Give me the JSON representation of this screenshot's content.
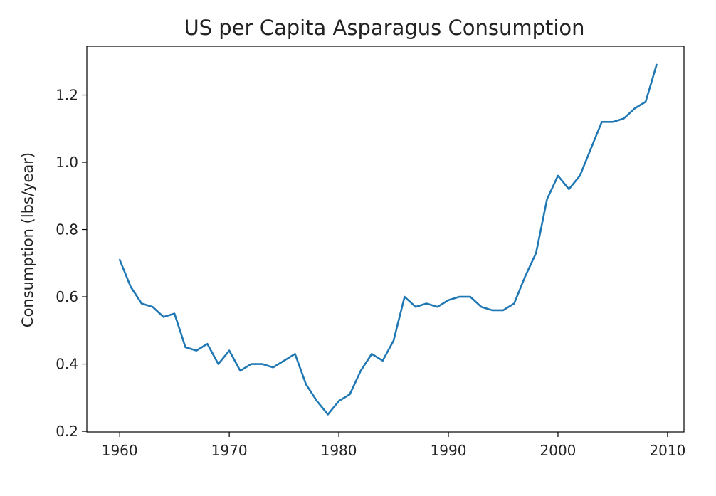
{
  "chart_data": {
    "type": "line",
    "title": "US per Capita Asparagus Consumption",
    "xlabel": "",
    "ylabel": "Consumption (lbs/year)",
    "xlim": [
      1957,
      2011.5
    ],
    "ylim": [
      0.198,
      1.345
    ],
    "xticks": [
      1960,
      1970,
      1980,
      1990,
      2000,
      2010
    ],
    "xtick_labels": [
      "1960",
      "1970",
      "1980",
      "1990",
      "2000",
      "2010"
    ],
    "yticks": [
      0.2,
      0.4,
      0.6,
      0.8,
      1.0,
      1.2
    ],
    "ytick_labels": [
      "0.2",
      "0.4",
      "0.6",
      "0.8",
      "1.0",
      "1.2"
    ],
    "grid": false,
    "legend": "none",
    "series": [
      {
        "color": "#1f77b4",
        "x": [
          1960,
          1961,
          1962,
          1963,
          1964,
          1965,
          1966,
          1967,
          1968,
          1969,
          1970,
          1971,
          1972,
          1973,
          1974,
          1975,
          1976,
          1977,
          1978,
          1979,
          1980,
          1981,
          1982,
          1983,
          1984,
          1985,
          1986,
          1987,
          1988,
          1989,
          1990,
          1991,
          1992,
          1993,
          1994,
          1995,
          1996,
          1997,
          1998,
          1999,
          2000,
          2001,
          2002,
          2003,
          2004,
          2005,
          2006,
          2007,
          2008,
          2009
        ],
        "values": [
          0.71,
          0.63,
          0.58,
          0.57,
          0.54,
          0.55,
          0.45,
          0.44,
          0.46,
          0.4,
          0.44,
          0.38,
          0.4,
          0.4,
          0.39,
          0.41,
          0.43,
          0.34,
          0.29,
          0.25,
          0.29,
          0.31,
          0.38,
          0.43,
          0.41,
          0.47,
          0.6,
          0.57,
          0.58,
          0.57,
          0.59,
          0.6,
          0.6,
          0.57,
          0.56,
          0.56,
          0.58,
          0.66,
          0.73,
          0.89,
          0.96,
          0.92,
          0.96,
          1.04,
          1.12,
          1.12,
          1.13,
          1.16,
          1.18,
          1.29
        ]
      }
    ]
  }
}
